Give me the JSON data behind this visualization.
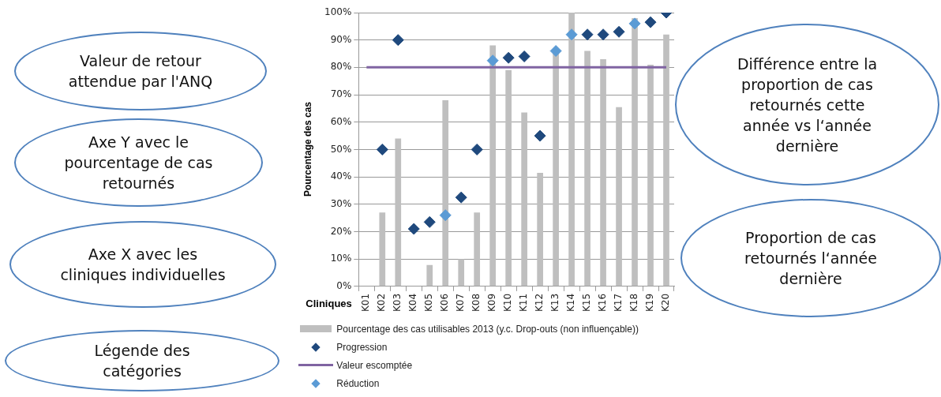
{
  "chart_data": {
    "type": "bar",
    "ylabel": "Pourcentage des cas",
    "xlabel": "Cliniques",
    "categories": [
      "K01",
      "K02",
      "K03",
      "K04",
      "K05",
      "K06",
      "K07",
      "K08",
      "K09",
      "K10",
      "K11",
      "K12",
      "K13",
      "K14",
      "K15",
      "K16",
      "K17",
      "K18",
      "K19",
      "K20"
    ],
    "series": [
      {
        "name": "Pourcentage des cas utilisables 2013 (y.c. Drop-outs (non influençable))",
        "color": "#bfbfbf",
        "values": [
          null,
          27,
          54,
          null,
          7.8,
          68,
          10,
          27,
          88,
          79,
          63.5,
          41.5,
          85.5,
          100,
          86,
          83,
          65.5,
          98,
          81,
          92
        ]
      },
      {
        "type": "scatter",
        "name": "Progression",
        "color": "#1f497d",
        "marker": "diamond",
        "x": [
          "K02",
          "K03",
          "K04",
          "K05",
          "K07",
          "K08",
          "K10",
          "K11",
          "K12",
          "K15",
          "K16",
          "K17",
          "K19",
          "K20"
        ],
        "values": [
          50,
          90,
          21,
          23.5,
          32.5,
          50,
          83.5,
          84,
          55,
          92,
          92,
          93,
          96.5,
          100
        ]
      },
      {
        "type": "line",
        "name": "Valeur escomptée",
        "color": "#8064a2",
        "marker": "none",
        "values": [
          80,
          80,
          80,
          80,
          80,
          80,
          80,
          80,
          80,
          80,
          80,
          80,
          80,
          80,
          80,
          80,
          80,
          80,
          80,
          80
        ]
      },
      {
        "type": "scatter",
        "name": "Réduction",
        "color": "#5b9bd5",
        "marker": "diamond",
        "x": [
          "K06",
          "K09",
          "K13",
          "K14",
          "K18"
        ],
        "values": [
          26,
          82.5,
          86,
          92,
          96
        ]
      }
    ],
    "ylim": [
      0,
      100
    ],
    "yticks": [
      {
        "value": 0,
        "label": "0%"
      },
      {
        "value": 10,
        "label": "10%"
      },
      {
        "value": 20,
        "label": "20%"
      },
      {
        "value": 30,
        "label": "30%"
      },
      {
        "value": 40,
        "label": "40%"
      },
      {
        "value": 50,
        "label": "50%"
      },
      {
        "value": 60,
        "label": "60%"
      },
      {
        "value": 70,
        "label": "70%"
      },
      {
        "value": 80,
        "label": "80%"
      },
      {
        "value": 90,
        "label": "90%"
      },
      {
        "value": 100,
        "label": "100%"
      }
    ],
    "grid": "y",
    "legend": "bottom",
    "line_style": "solid",
    "annotations": [
      "Valeur de retour attendue par l'ANQ",
      "Axe Y avec le pourcentage de cas retournés",
      "Axe X avec les cliniques individuelles",
      "Légende des catégories",
      "Différence entre la proportion de cas retournés cette année vs l‘année dernière",
      "Proportion de cas retournés l‘année dernière"
    ]
  }
}
